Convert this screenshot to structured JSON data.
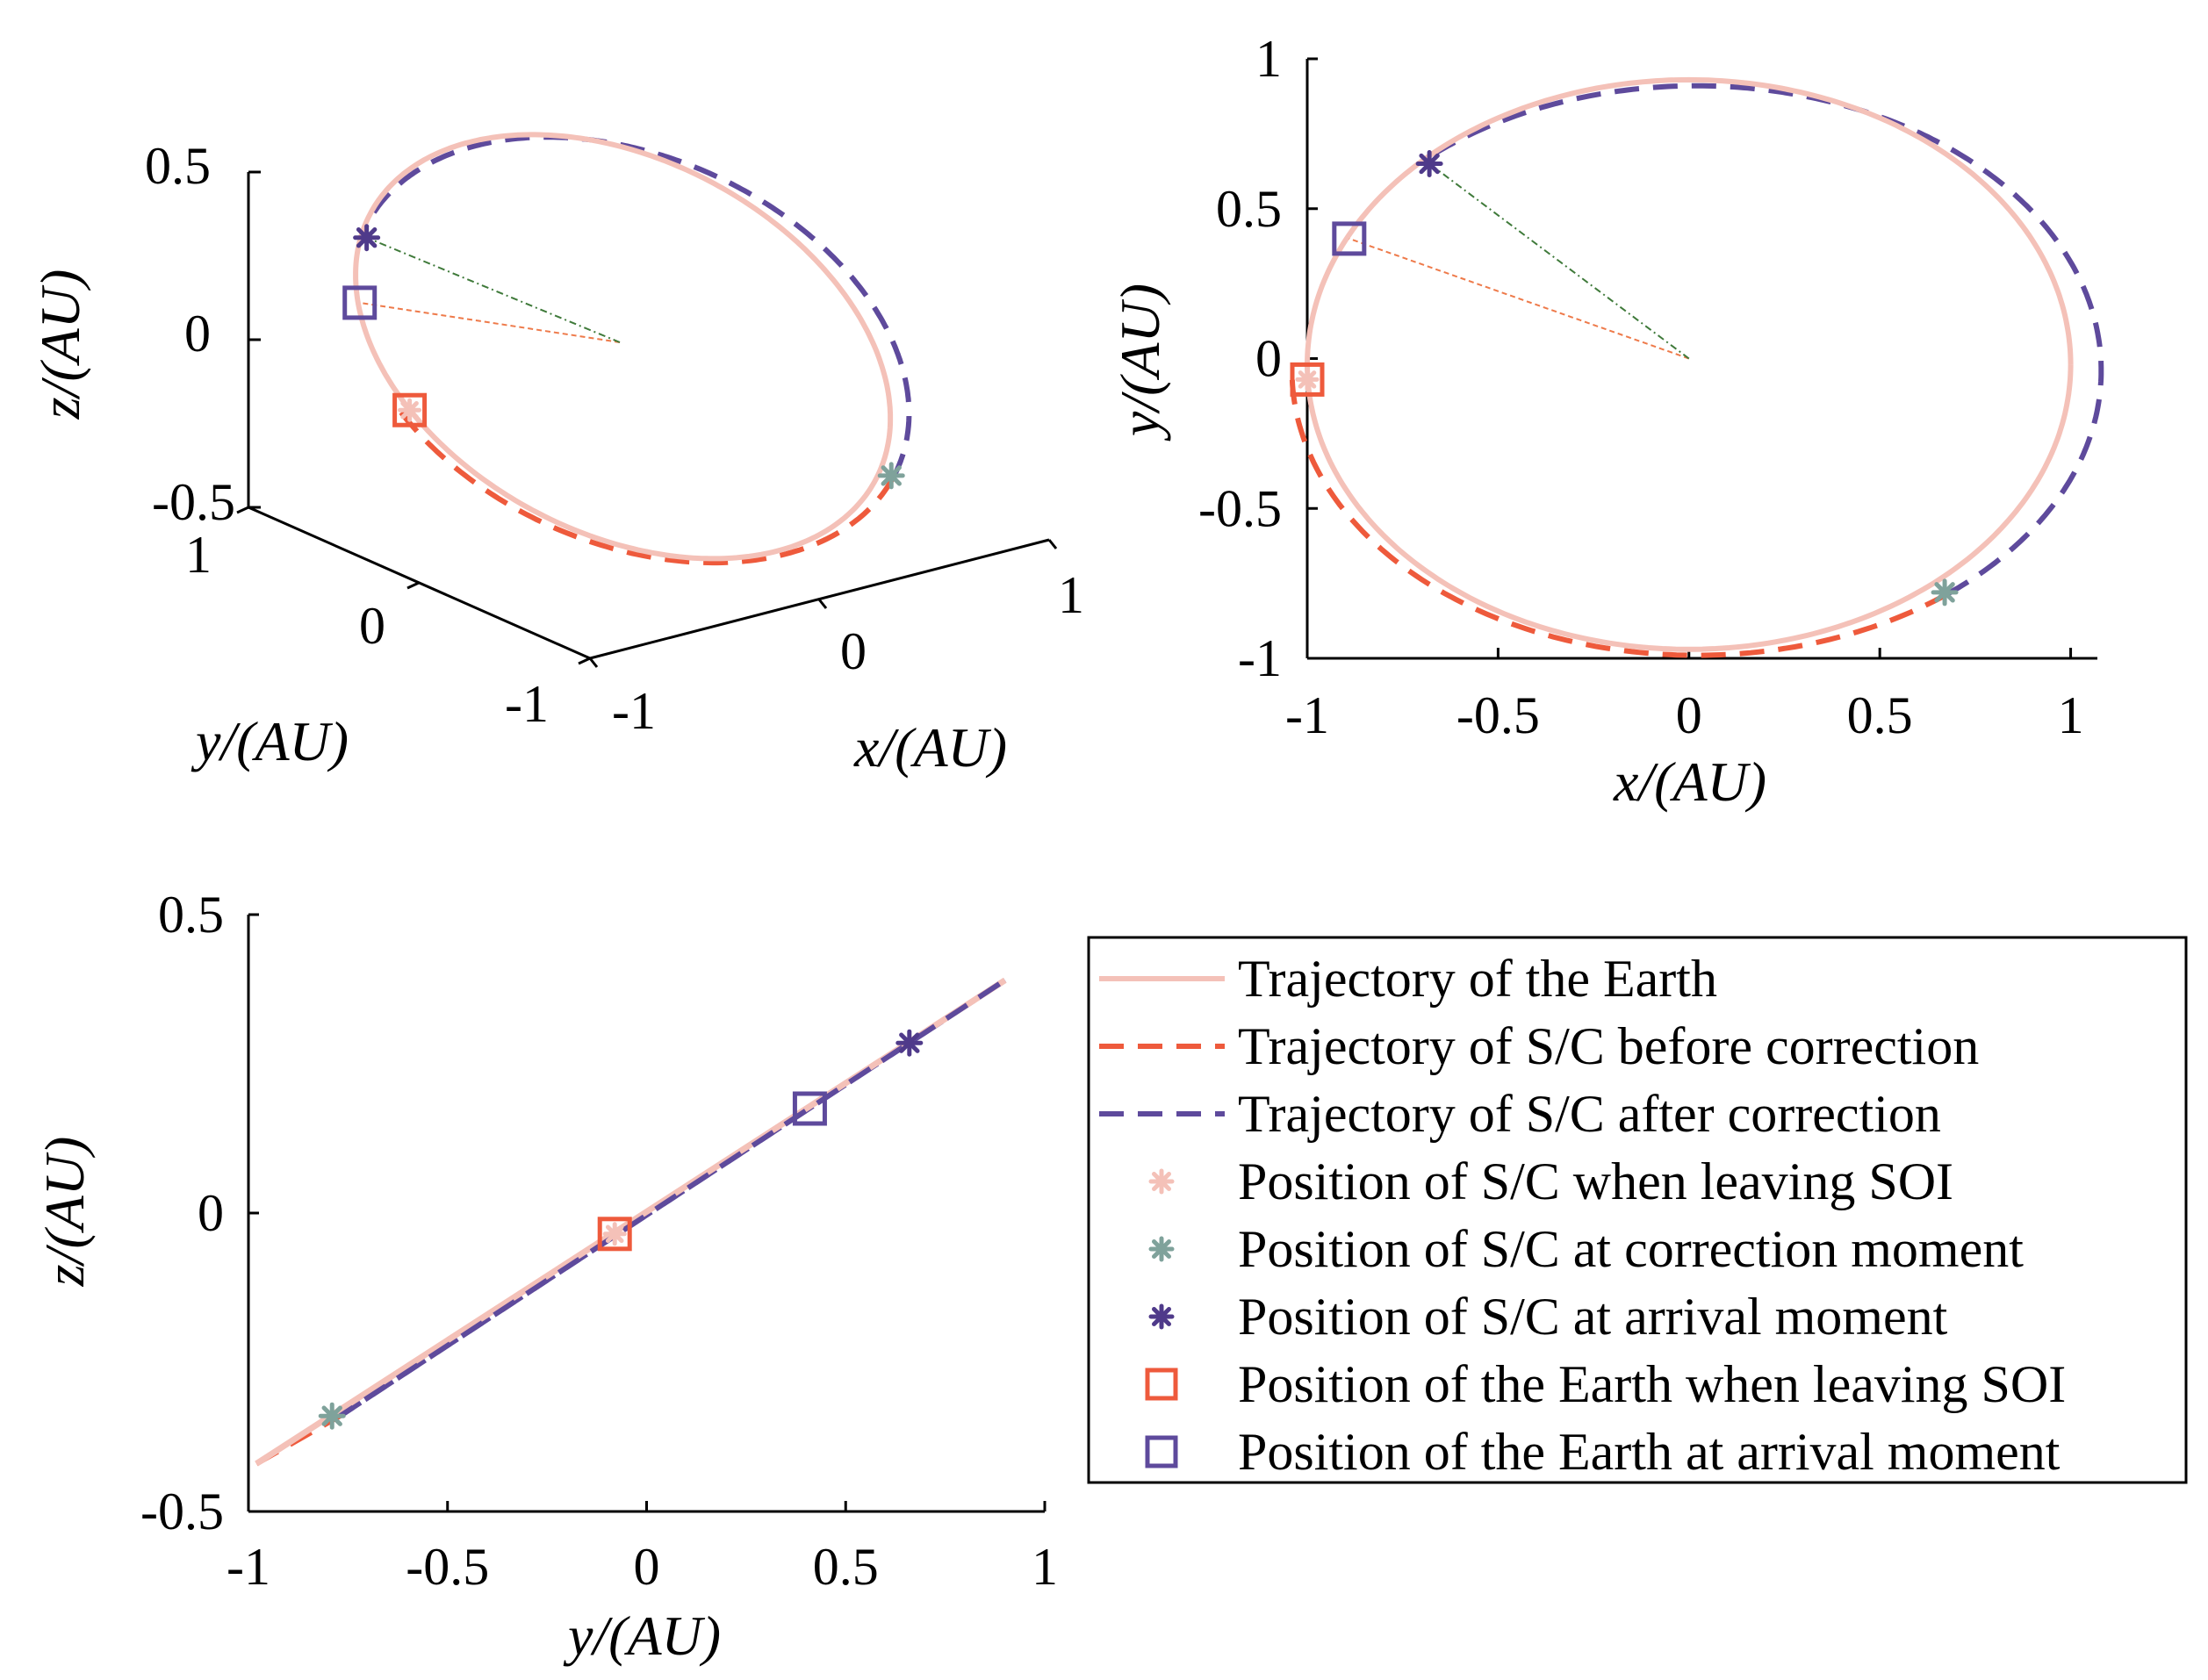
{
  "chart_data": [
    {
      "id": "panel_3d",
      "type": "line",
      "projection": "3d",
      "xlabel": "x/(AU)",
      "ylabel": "y/(AU)",
      "zlabel": "z/(AU)",
      "xlim": [
        -1,
        1
      ],
      "ylim": [
        -1,
        1
      ],
      "zlim": [
        -0.5,
        0.5
      ],
      "xticks": [
        "-1",
        "0",
        "1"
      ],
      "yticks": [
        "-1",
        "0",
        "1"
      ],
      "zticks": [
        "-0.5",
        "0",
        "0.5"
      ]
    },
    {
      "id": "panel_xy",
      "type": "line",
      "xlabel": "x/(AU)",
      "ylabel": "y/(AU)",
      "xlim": [
        -1,
        1.07
      ],
      "ylim": [
        -1,
        1
      ],
      "xticks": [
        "-1",
        "-0.5",
        "0",
        "0.5",
        "1"
      ],
      "yticks": [
        "-1",
        "-0.5",
        "0",
        "0.5",
        "1"
      ]
    },
    {
      "id": "panel_yz",
      "type": "line",
      "xlabel": "y/(AU)",
      "ylabel": "z/(AU)",
      "xlim": [
        -1,
        1
      ],
      "ylim": [
        -0.5,
        0.5
      ],
      "xticks": [
        "-1",
        "-0.5",
        "0",
        "0.5",
        "1"
      ],
      "yticks": [
        "-0.5",
        "0",
        "0.5"
      ],
      "series": [
        {
          "name": "Trajectory of the Earth",
          "x": [
            -0.98,
            0.9
          ],
          "y": [
            -0.42,
            0.39
          ]
        },
        {
          "name": "Trajectory of S/C before correction",
          "x": [
            -0.98,
            -0.77
          ],
          "y": [
            -0.42,
            -0.34
          ]
        },
        {
          "name": "Trajectory of S/C after correction",
          "x": [
            -0.77,
            0.9
          ],
          "y": [
            -0.34,
            0.39
          ]
        }
      ],
      "points": [
        {
          "name": "Position of S/C when leaving SOI",
          "y": -0.08,
          "z": -0.035
        },
        {
          "name": "Position of S/C at correction moment",
          "y": -0.79,
          "z": -0.34
        },
        {
          "name": "Position of S/C at arrival moment",
          "y": 0.66,
          "z": 0.285
        },
        {
          "name": "Position of the Earth when leaving SOI",
          "y": -0.08,
          "z": -0.035
        },
        {
          "name": "Position of the Earth at arrival moment",
          "y": 0.41,
          "z": 0.175
        }
      ]
    }
  ],
  "orbit": {
    "earth": {
      "a": 1.0,
      "b": 0.95,
      "cx": 0.0,
      "cy": -0.02
    },
    "spacecraft": {
      "a": 1.06,
      "b": 0.95,
      "cx": 0.02,
      "cy": -0.04
    },
    "sc_leave_xy": [
      -1.0,
      -0.07
    ],
    "sc_correction_xy": [
      0.67,
      -0.78
    ],
    "sc_arrival_xy": [
      -0.68,
      0.65
    ],
    "earth_leave_xy": [
      -1.0,
      -0.07
    ],
    "earth_arrival_xy": [
      -0.89,
      0.4
    ],
    "sun_xy": [
      0,
      0
    ],
    "inclination_zy": 0.43
  },
  "legend": {
    "items": [
      {
        "label": "Trajectory of the Earth",
        "style": "solid",
        "color": "#f4c1b8"
      },
      {
        "label": "Trajectory of S/C before correction",
        "style": "dashed",
        "color": "#ee5a3c"
      },
      {
        "label": "Trajectory of S/C after correction",
        "style": "dashed",
        "color": "#5e4a9c"
      },
      {
        "label": "Position of S/C when leaving SOI",
        "style": "asterisk",
        "color": "#f4c1b8"
      },
      {
        "label": "Position of S/C at correction moment",
        "style": "asterisk",
        "color": "#7fa29b"
      },
      {
        "label": "Position of S/C at arrival moment",
        "style": "asterisk",
        "color": "#4f3a8a"
      },
      {
        "label": "Position of the Earth when leaving SOI",
        "style": "square",
        "color": "#ee5a3c"
      },
      {
        "label": "Position of the Earth at arrival moment",
        "style": "square",
        "color": "#5e4a9c"
      }
    ]
  },
  "colors": {
    "earth": "#f4c1b8",
    "before": "#ee5a3c",
    "after": "#5e4a9c",
    "correction": "#7fa29b",
    "arrival": "#4f3a8a",
    "line_orange": "#ee7a4a",
    "line_green": "#3f7a3a"
  }
}
